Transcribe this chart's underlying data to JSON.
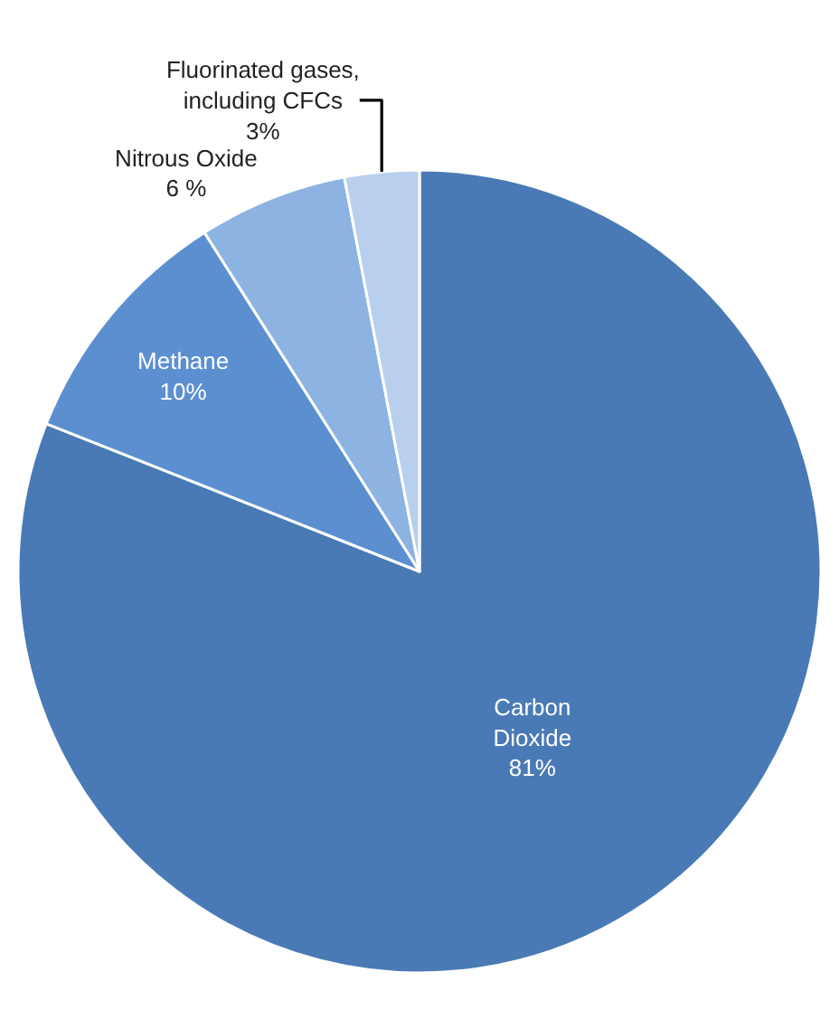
{
  "chart_data": {
    "type": "pie",
    "categories": [
      "Carbon Dioxide",
      "Methane",
      "Nitrous Oxide",
      "Fluorinated gases, including CFCs"
    ],
    "values": [
      81,
      10,
      6,
      3
    ],
    "value_labels": [
      "81%",
      "10%",
      "6 %",
      "3%"
    ],
    "colors": [
      "#4a7ab5",
      "#5b8fd0",
      "#8db3e2",
      "#b9cfee"
    ],
    "legend": false
  }
}
